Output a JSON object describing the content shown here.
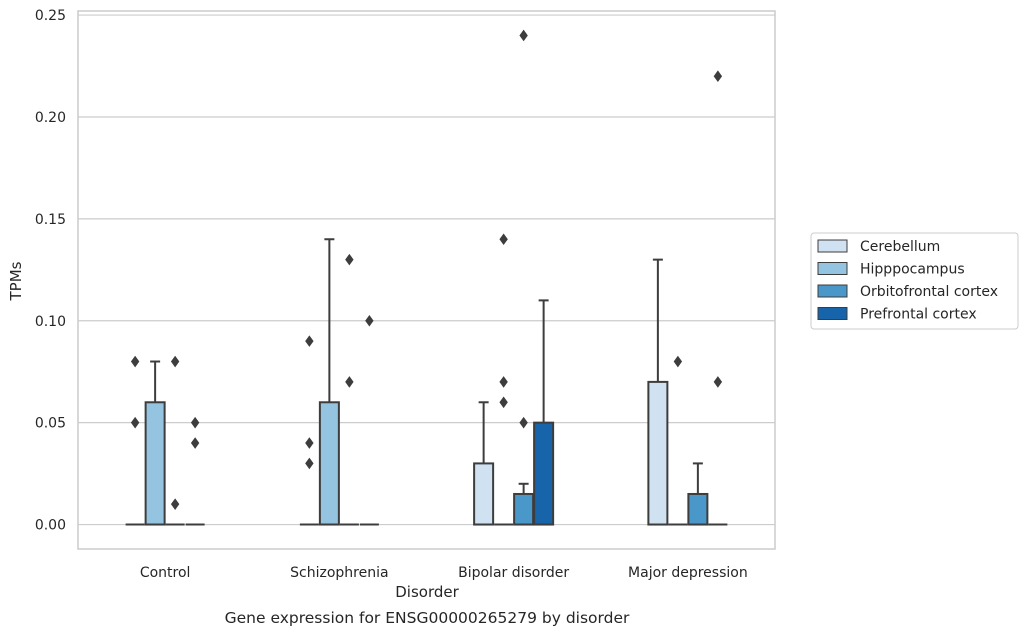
{
  "chart_data": {
    "type": "box",
    "caption": "Gene expression for ENSG00000265279 by disorder",
    "xlabel": "Disorder",
    "ylabel": "TPMs",
    "ylim": [
      -0.012,
      0.252
    ],
    "yticks": [
      0.0,
      0.05,
      0.1,
      0.15,
      0.2,
      0.25
    ],
    "ytick_labels": [
      "0.00",
      "0.05",
      "0.10",
      "0.15",
      "0.20",
      "0.25"
    ],
    "grid": true,
    "legend_position": "right",
    "categories": [
      "Control",
      "Schizophrenia",
      "Bipolar disorder",
      "Major depression"
    ],
    "series": [
      {
        "name": "Cerebellum",
        "color": "#d0e1f2",
        "boxes": [
          {
            "q1": 0,
            "median": 0,
            "q3": 0,
            "whisker_low": 0,
            "whisker_high": 0,
            "outliers": [
              0.08,
              0.05
            ]
          },
          {
            "q1": 0,
            "median": 0,
            "q3": 0,
            "whisker_low": 0,
            "whisker_high": 0,
            "outliers": [
              0.09,
              0.04,
              0.03
            ]
          },
          {
            "q1": 0,
            "median": 0,
            "q3": 0.03,
            "whisker_low": 0,
            "whisker_high": 0.06,
            "outliers": []
          },
          {
            "q1": 0,
            "median": 0,
            "q3": 0.07,
            "whisker_low": 0,
            "whisker_high": 0.13,
            "outliers": []
          }
        ]
      },
      {
        "name": "Hipppocampus",
        "color": "#94c4df",
        "boxes": [
          {
            "q1": 0,
            "median": 0,
            "q3": 0.06,
            "whisker_low": 0,
            "whisker_high": 0.08,
            "outliers": []
          },
          {
            "q1": 0,
            "median": 0,
            "q3": 0.06,
            "whisker_low": 0,
            "whisker_high": 0.14,
            "outliers": []
          },
          {
            "q1": 0,
            "median": 0,
            "q3": 0,
            "whisker_low": 0,
            "whisker_high": 0,
            "outliers": [
              0.14,
              0.07,
              0.06
            ]
          },
          {
            "q1": 0,
            "median": 0,
            "q3": 0,
            "whisker_low": 0,
            "whisker_high": 0,
            "outliers": [
              0.08
            ]
          }
        ]
      },
      {
        "name": "Orbitofrontal cortex",
        "color": "#4a98c9",
        "boxes": [
          {
            "q1": 0,
            "median": 0,
            "q3": 0,
            "whisker_low": 0,
            "whisker_high": 0,
            "outliers": [
              0.08,
              0.01
            ]
          },
          {
            "q1": 0,
            "median": 0,
            "q3": 0,
            "whisker_low": 0,
            "whisker_high": 0,
            "outliers": [
              0.13,
              0.07
            ]
          },
          {
            "q1": 0,
            "median": 0,
            "q3": 0.015,
            "whisker_low": 0,
            "whisker_high": 0.02,
            "outliers": [
              0.24,
              0.05
            ]
          },
          {
            "q1": 0,
            "median": 0,
            "q3": 0.015,
            "whisker_low": 0,
            "whisker_high": 0.03,
            "outliers": []
          }
        ]
      },
      {
        "name": "Prefrontal cortex",
        "color": "#1764ab",
        "boxes": [
          {
            "q1": 0,
            "median": 0,
            "q3": 0,
            "whisker_low": 0,
            "whisker_high": 0,
            "outliers": [
              0.05,
              0.04
            ]
          },
          {
            "q1": 0,
            "median": 0,
            "q3": 0,
            "whisker_low": 0,
            "whisker_high": 0,
            "outliers": [
              0.1
            ]
          },
          {
            "q1": 0,
            "median": 0,
            "q3": 0.05,
            "whisker_low": 0,
            "whisker_high": 0.11,
            "outliers": []
          },
          {
            "q1": 0,
            "median": 0,
            "q3": 0,
            "whisker_low": 0,
            "whisker_high": 0,
            "outliers": [
              0.22,
              0.07
            ]
          }
        ]
      }
    ]
  }
}
